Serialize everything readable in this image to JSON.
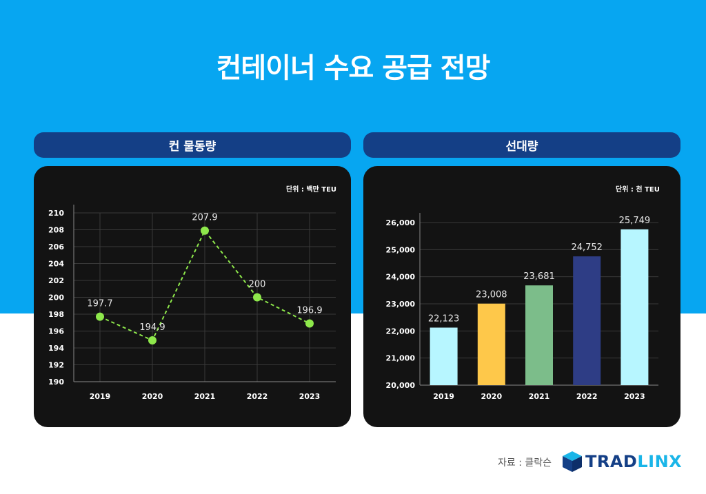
{
  "page": {
    "title": "컨테이너 수요 공급 전망"
  },
  "footer": {
    "source": "자료 : 클락슨",
    "logo_part1": "TRAD",
    "logo_part2": "LINX"
  },
  "colors": {
    "background_top": "#07a6f1",
    "pill": "#143f86",
    "card": "#131313",
    "line_point": "#8ee84b",
    "logo_blue": "#143f86",
    "logo_cyan": "#1ab5e8"
  },
  "chart_data": [
    {
      "type": "line",
      "header": "컨 물동량",
      "unit": "단위 : 백만 TEU",
      "categories": [
        "2019",
        "2020",
        "2021",
        "2022",
        "2023"
      ],
      "values": [
        197.7,
        194.9,
        207.9,
        200,
        196.9
      ],
      "labels": [
        "197.7",
        "194.9",
        "207.9",
        "200",
        "196.9"
      ],
      "yticks": [
        "190",
        "192",
        "194",
        "196",
        "198",
        "200",
        "202",
        "204",
        "206",
        "208",
        "210"
      ],
      "ylim": [
        190,
        210
      ],
      "style": "dashed",
      "grid": true
    },
    {
      "type": "bar",
      "header": "선대량",
      "unit": "단위 : 천 TEU",
      "categories": [
        "2019",
        "2020",
        "2021",
        "2022",
        "2023"
      ],
      "values": [
        22123,
        23008,
        23681,
        24752,
        25749
      ],
      "labels": [
        "22,123",
        "23,008",
        "23,681",
        "24,752",
        "25,749"
      ],
      "yticks": [
        "20,000",
        "21,000",
        "22,000",
        "23,000",
        "24,000",
        "25,000",
        "26,000"
      ],
      "ylim": [
        20000,
        26000
      ],
      "bar_colors": [
        "#b7f6ff",
        "#fec84a",
        "#7cbd8a",
        "#2e3d85",
        "#b7f6ff"
      ],
      "grid": true
    }
  ]
}
